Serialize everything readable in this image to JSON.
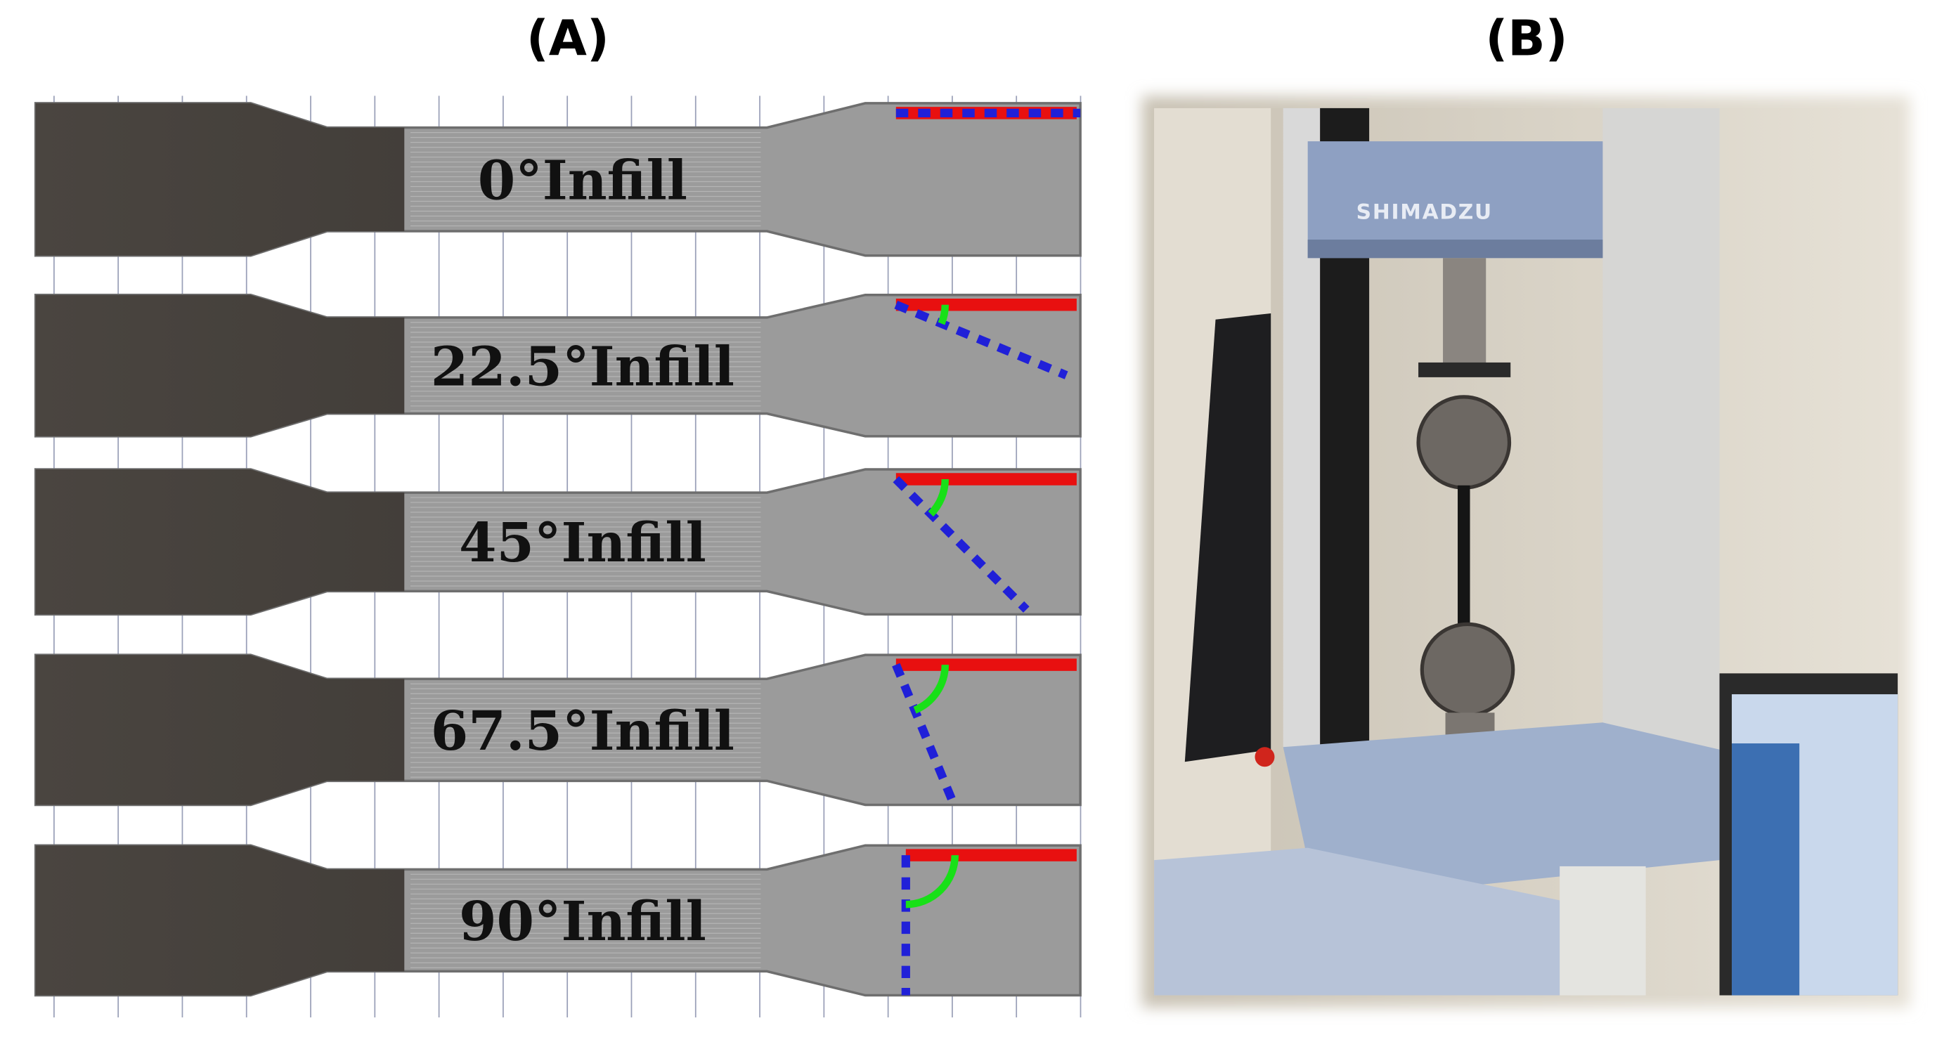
{
  "panels": [
    {
      "label": "(A)",
      "specimens": [
        {
          "label": "0°Infill"
        },
        {
          "label": "22.5°Infill"
        },
        {
          "label": "45°Infill"
        },
        {
          "label": "67.5°Infill"
        },
        {
          "label": "90°Infill"
        }
      ]
    },
    {
      "label": "(B)",
      "machine_brand": "SHIMADZU"
    }
  ]
}
